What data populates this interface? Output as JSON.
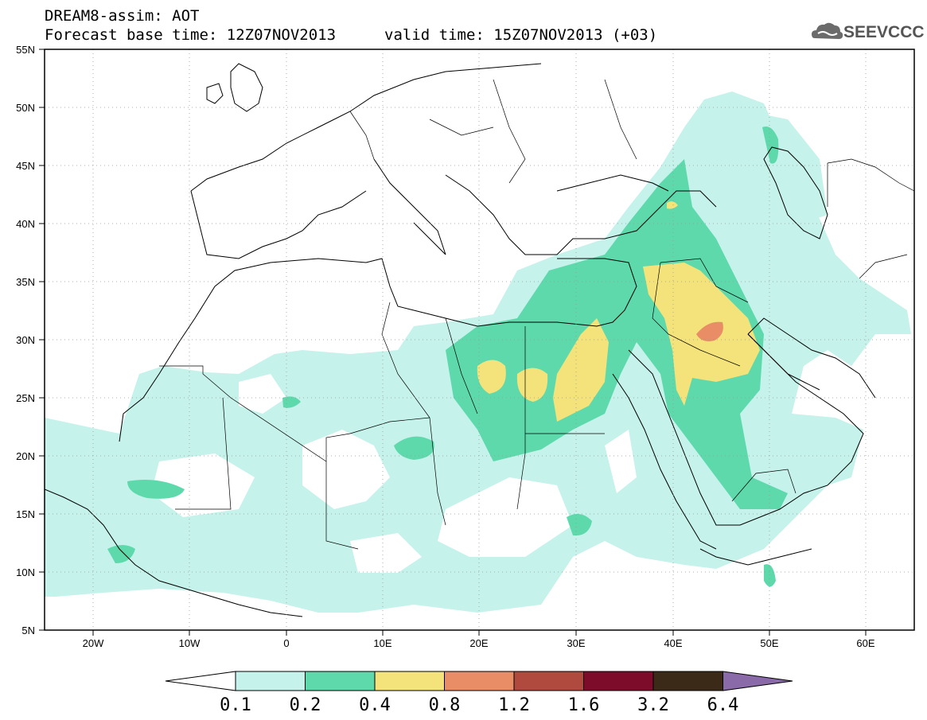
{
  "header": {
    "title": "DREAM8-assim: AOT",
    "base_time": "Forecast base time: 12Z07NOV2013",
    "valid_time": "valid time: 15Z07NOV2013 (+03)",
    "logo": "SEEVCCC"
  },
  "axes": {
    "lon_ticks": [
      "20W",
      "10W",
      "0",
      "10E",
      "20E",
      "30E",
      "40E",
      "50E",
      "60E"
    ],
    "lat_ticks": [
      "55N",
      "50N",
      "45N",
      "40N",
      "35N",
      "30N",
      "25N",
      "20N",
      "15N",
      "10N",
      "5N"
    ]
  },
  "colorbar": {
    "labels": [
      "0.1",
      "0.2",
      "0.4",
      "0.8",
      "1.2",
      "1.6",
      "3.2",
      "6.4"
    ],
    "colors": [
      "#c5f2ea",
      "#5dd9ac",
      "#f4e37a",
      "#e88d66",
      "#b04a3e",
      "#7c0c2a",
      "#3a2a17",
      "#8a6aa8"
    ]
  }
}
